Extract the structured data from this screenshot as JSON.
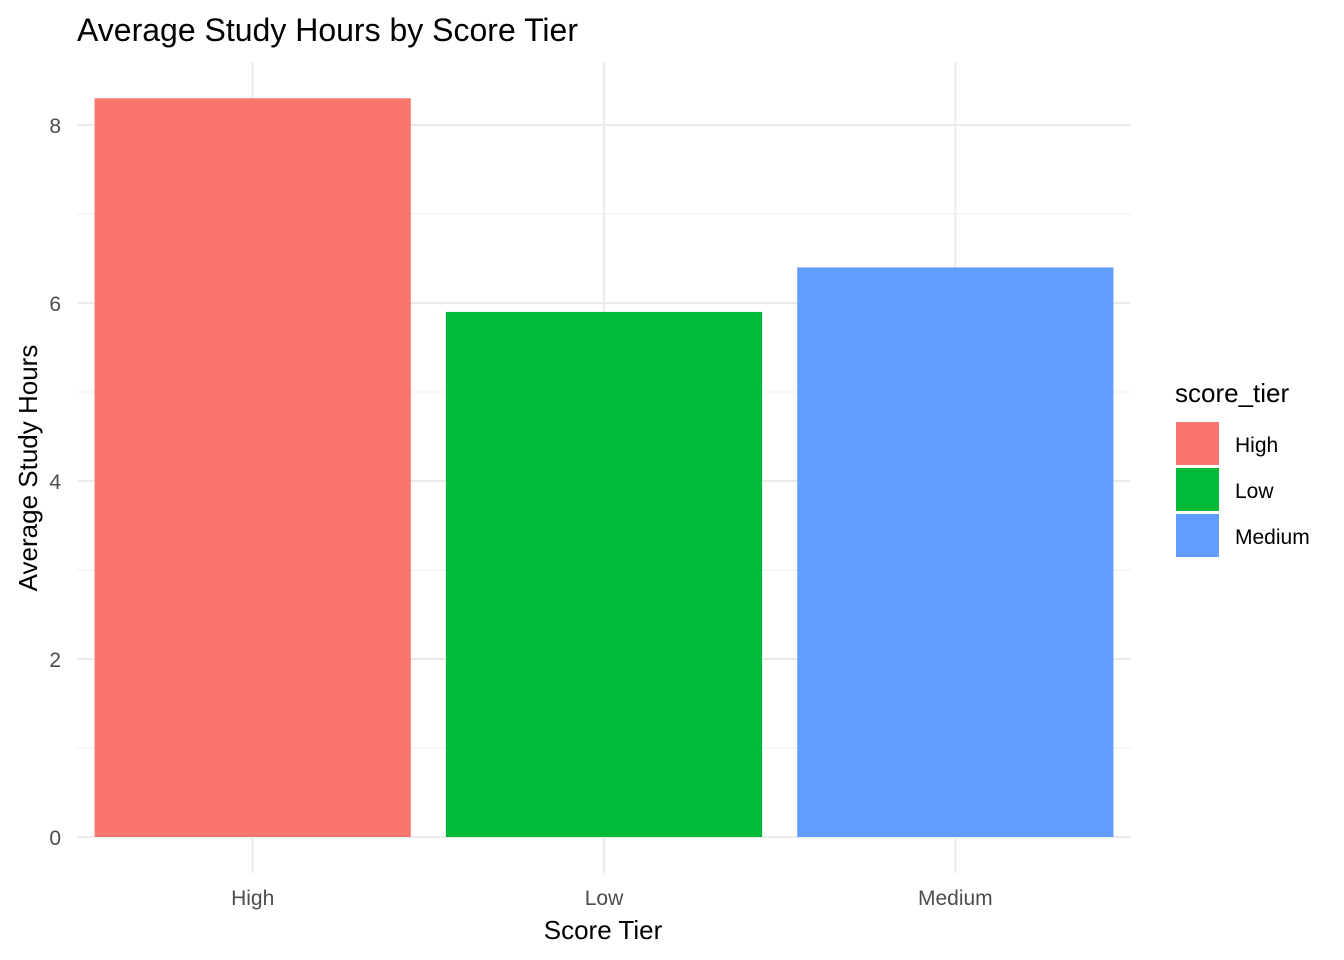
{
  "chart_data": {
    "type": "bar",
    "title": "Average Study Hours by Score Tier",
    "xlabel": "Score Tier",
    "ylabel": "Average Study Hours",
    "categories": [
      "High",
      "Low",
      "Medium"
    ],
    "values": [
      8.3,
      5.9,
      6.4
    ],
    "colors": [
      "#F8766D",
      "#00BA38",
      "#619CFF"
    ],
    "ylim": [
      0,
      8.7
    ],
    "yticks": [
      0,
      2,
      4,
      6,
      8
    ],
    "grid": true,
    "legend": {
      "title": "score_tier",
      "placement": "right",
      "entries": [
        "High",
        "Low",
        "Medium"
      ]
    }
  }
}
